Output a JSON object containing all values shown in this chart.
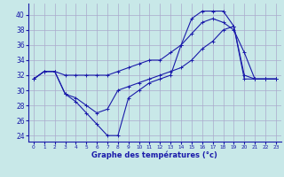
{
  "title": "",
  "xlabel": "Graphe des températures (°c)",
  "background_color": "#c8e8e8",
  "line_color": "#1a1aaa",
  "grid_color": "#aaaacc",
  "yticks": [
    24,
    26,
    28,
    30,
    32,
    34,
    36,
    38,
    40
  ],
  "xticks": [
    0,
    1,
    2,
    3,
    4,
    5,
    6,
    7,
    8,
    9,
    10,
    11,
    12,
    13,
    14,
    15,
    16,
    17,
    18,
    19,
    20,
    21,
    22,
    23
  ],
  "xlim": [
    -0.5,
    23.5
  ],
  "ylim": [
    23.2,
    41.5
  ],
  "series": [
    {
      "x": [
        0,
        1,
        2,
        3,
        4,
        5,
        6,
        7,
        8,
        9,
        10,
        11,
        12,
        13,
        14,
        15,
        16,
        17,
        18,
        19,
        20,
        21,
        22,
        23
      ],
      "y": [
        31.5,
        32.5,
        32.5,
        32.0,
        32.0,
        32.0,
        32.0,
        32.0,
        32.5,
        33.0,
        33.5,
        34.0,
        34.0,
        35.0,
        36.0,
        37.5,
        39.0,
        39.5,
        39.0,
        38.0,
        35.0,
        31.5,
        31.5,
        31.5
      ]
    },
    {
      "x": [
        0,
        1,
        2,
        3,
        4,
        5,
        6,
        7,
        8,
        9,
        10,
        11,
        12,
        13,
        14,
        15,
        16,
        17,
        18,
        19,
        20,
        21,
        22,
        23
      ],
      "y": [
        31.5,
        32.5,
        32.5,
        29.5,
        28.5,
        27.0,
        25.5,
        24.0,
        24.0,
        29.0,
        30.0,
        31.0,
        31.5,
        32.0,
        36.0,
        39.5,
        40.5,
        40.5,
        40.5,
        38.5,
        32.0,
        31.5,
        31.5,
        31.5
      ]
    },
    {
      "x": [
        0,
        1,
        2,
        3,
        4,
        5,
        6,
        7,
        8,
        9,
        10,
        11,
        12,
        13,
        14,
        15,
        16,
        17,
        18,
        19,
        20,
        21,
        22,
        23
      ],
      "y": [
        31.5,
        32.5,
        32.5,
        29.5,
        29.0,
        28.0,
        27.0,
        27.5,
        30.0,
        30.5,
        31.0,
        31.5,
        32.0,
        32.5,
        33.0,
        34.0,
        35.5,
        36.5,
        38.0,
        38.5,
        31.5,
        31.5,
        31.5,
        31.5
      ]
    }
  ]
}
